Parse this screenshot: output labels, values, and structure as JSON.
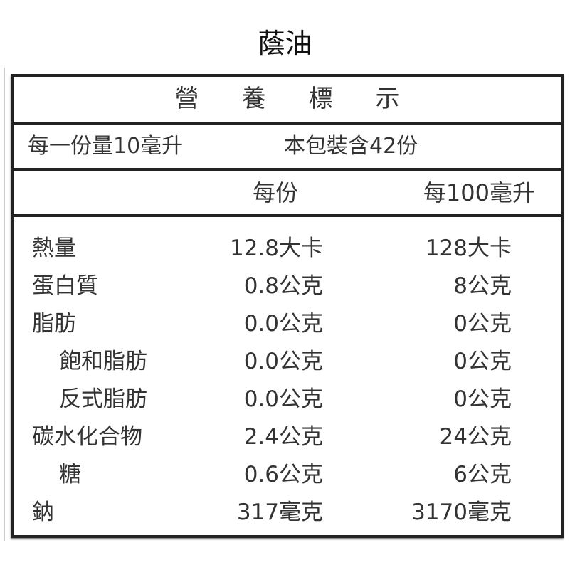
{
  "title": "蔭油",
  "label_heading": "營養標示",
  "serving_size": "每一份量10毫升",
  "servings_per_package": "本包裝含42份",
  "column_headers": {
    "per_serving": "每份",
    "per_100": "每100毫升"
  },
  "rows": [
    {
      "name": "熱量",
      "indent": false,
      "per_serving": "12.8大卡",
      "per_100": "128大卡"
    },
    {
      "name": "蛋白質",
      "indent": false,
      "per_serving": "0.8公克",
      "per_100": "8公克"
    },
    {
      "name": "脂肪",
      "indent": false,
      "per_serving": "0.0公克",
      "per_100": "0公克"
    },
    {
      "name": "飽和脂肪",
      "indent": true,
      "per_serving": "0.0公克",
      "per_100": "0公克"
    },
    {
      "name": "反式脂肪",
      "indent": true,
      "per_serving": "0.0公克",
      "per_100": "0公克"
    },
    {
      "name": "碳水化合物",
      "indent": false,
      "per_serving": "2.4公克",
      "per_100": "24公克"
    },
    {
      "name": "糖",
      "indent": true,
      "per_serving": "0.6公克",
      "per_100": "6公克"
    },
    {
      "name": "鈉",
      "indent": false,
      "per_serving": "317毫克",
      "per_100": "3170毫克"
    }
  ]
}
